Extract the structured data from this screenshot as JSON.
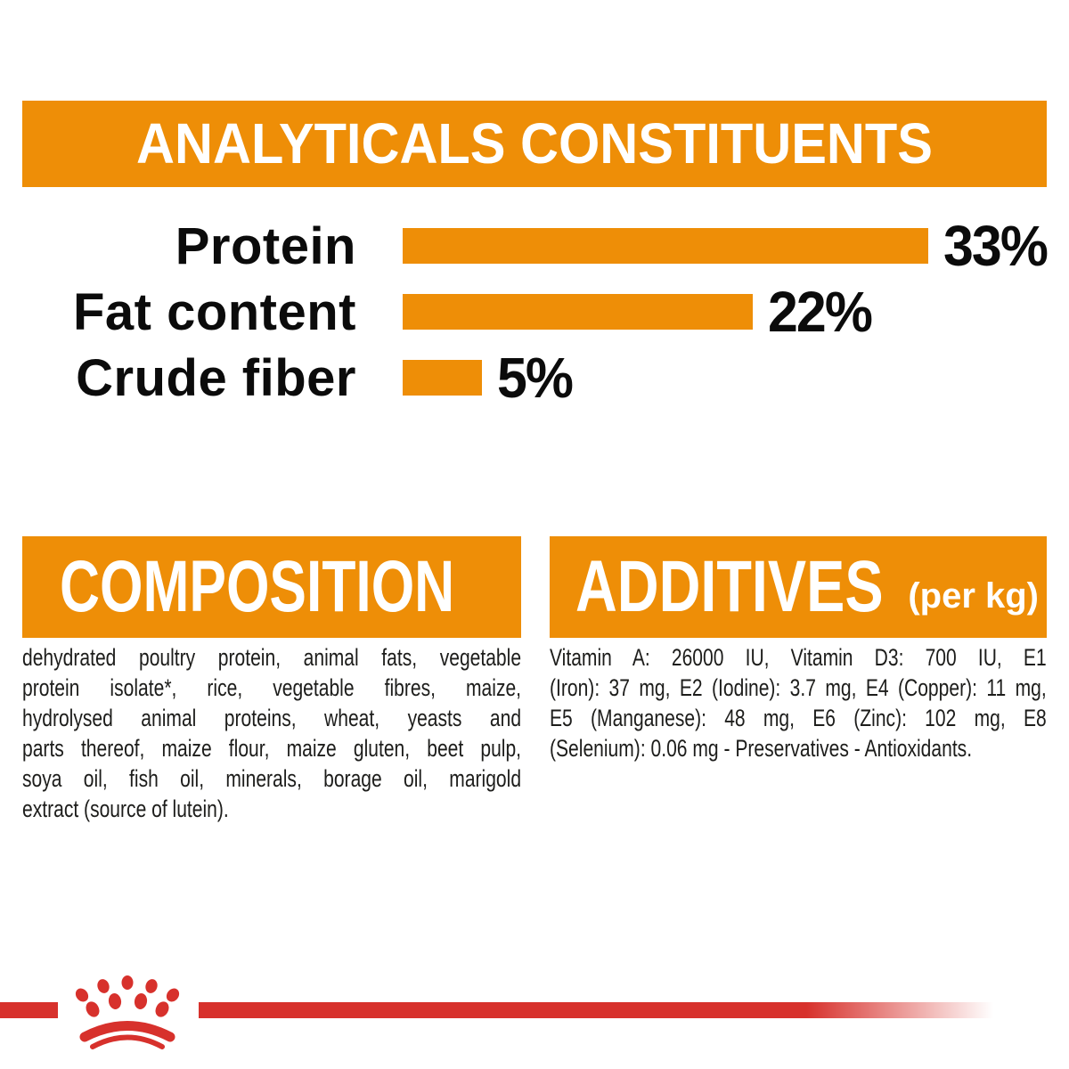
{
  "colors": {
    "orange": "#EE8E07",
    "red": "#D7312C",
    "text_dark": "#1d1d1b",
    "white": "#ffffff"
  },
  "analyticals": {
    "title": "ANALYTICALS CONSTITUENTS"
  },
  "chart_data": {
    "type": "bar",
    "orientation": "horizontal",
    "title": "ANALYTICALS CONSTITUENTS",
    "categories": [
      "Protein",
      "Fat content",
      "Crude fiber"
    ],
    "values": [
      33,
      22,
      5
    ],
    "unit": "%",
    "value_labels": [
      "33%",
      "22%",
      "5%"
    ],
    "xlim": [
      0,
      33
    ],
    "bar_color": "#EE8E07",
    "grid": false,
    "legend": false
  },
  "composition": {
    "title": "COMPOSITION",
    "lines": [
      "dehydrated poultry protein, animal fats, vegetable",
      "protein isolate*, rice, vegetable fibres, maize,",
      "hydrolysed animal proteins, wheat, yeasts and",
      "parts thereof, maize flour, maize gluten, beet pulp,",
      "soya oil, fish oil, minerals, borage oil, marigold",
      "extract (source of lutein)."
    ],
    "full_text": "dehydrated poultry protein, animal fats, vegetable protein isolate*, rice, vegetable fibres, maize, hydrolysed animal proteins, wheat, yeasts and parts thereof, maize flour, maize gluten, beet pulp, soya oil, fish oil, minerals, borage oil, marigold extract (source of lutein)."
  },
  "additives": {
    "title": "ADDITIVES",
    "per_kg_label": "(per kg)",
    "lines": [
      "Vitamin A: 26000 IU, Vitamin D3: 700 IU, E1",
      "(Iron): 37 mg, E2 (Iodine): 3.7 mg, E4 (Copper): 11 mg,",
      "E5 (Manganese): 48 mg, E6 (Zinc): 102 mg, E8",
      "(Selenium): 0.06 mg - Preservatives - Antioxidants."
    ],
    "full_text": "Vitamin A: 26000 IU, Vitamin D3: 700 IU, E1 (Iron): 37 mg, E2 (Iodine): 3.7 mg, E4 (Copper): 11 mg, E5 (Manganese): 48 mg, E6 (Zinc): 102 mg, E8 (Selenium): 0.06 mg - Preservatives - Antioxidants."
  },
  "footer": {
    "logo": "royal-canin-crown"
  }
}
